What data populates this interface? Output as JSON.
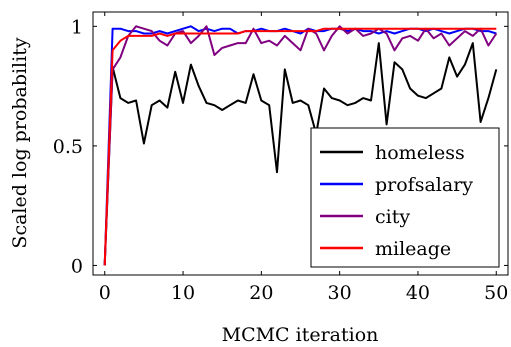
{
  "chart_data": {
    "type": "line",
    "xlabel": "MCMC iteration",
    "ylabel": "Scaled log probability",
    "xlim": [
      -1.5,
      51.5
    ],
    "ylim": [
      -0.04,
      1.06
    ],
    "xticks": [
      0,
      10,
      20,
      30,
      40,
      50
    ],
    "yticks": [
      0,
      0.5,
      1
    ],
    "ytick_labels": [
      "0",
      "0.5",
      "1"
    ],
    "grid": false,
    "legend_position": "bottom-right",
    "x": [
      0,
      1,
      2,
      3,
      4,
      5,
      6,
      7,
      8,
      9,
      10,
      11,
      12,
      13,
      14,
      15,
      16,
      17,
      18,
      19,
      20,
      21,
      22,
      23,
      24,
      25,
      26,
      27,
      28,
      29,
      30,
      31,
      32,
      33,
      34,
      35,
      36,
      37,
      38,
      39,
      40,
      41,
      42,
      43,
      44,
      45,
      46,
      47,
      48,
      49,
      50
    ],
    "series": [
      {
        "name": "homeless",
        "color": "#000000",
        "values": [
          0.0,
          0.83,
          0.7,
          0.68,
          0.69,
          0.51,
          0.67,
          0.69,
          0.66,
          0.81,
          0.68,
          0.84,
          0.75,
          0.68,
          0.67,
          0.65,
          0.67,
          0.69,
          0.68,
          0.8,
          0.69,
          0.67,
          0.39,
          0.82,
          0.68,
          0.69,
          0.67,
          0.55,
          0.74,
          0.7,
          0.69,
          0.67,
          0.68,
          0.7,
          0.69,
          0.93,
          0.59,
          0.85,
          0.82,
          0.74,
          0.71,
          0.7,
          0.72,
          0.74,
          0.87,
          0.79,
          0.84,
          0.93,
          0.6,
          0.7,
          0.82
        ]
      },
      {
        "name": "profsalary",
        "color": "#0000ff",
        "values": [
          0.0,
          0.99,
          0.99,
          0.98,
          0.98,
          0.97,
          0.97,
          0.98,
          0.97,
          0.98,
          0.99,
          1.0,
          0.98,
          0.99,
          0.98,
          0.99,
          0.99,
          0.97,
          0.98,
          0.98,
          0.99,
          0.98,
          0.98,
          0.99,
          0.98,
          0.97,
          0.99,
          0.98,
          0.98,
          0.99,
          0.99,
          0.98,
          0.99,
          0.98,
          0.98,
          0.97,
          0.98,
          0.97,
          0.98,
          0.99,
          0.99,
          0.98,
          0.99,
          0.98,
          0.97,
          0.98,
          0.99,
          0.99,
          0.98,
          0.98,
          0.97
        ]
      },
      {
        "name": "city",
        "color": "#800080",
        "values": [
          0.0,
          0.82,
          0.87,
          0.96,
          1.0,
          0.99,
          0.98,
          0.94,
          0.92,
          0.97,
          0.98,
          0.93,
          0.96,
          1.0,
          0.88,
          0.91,
          0.92,
          0.93,
          0.93,
          0.99,
          0.93,
          0.94,
          0.92,
          0.96,
          0.93,
          0.9,
          0.99,
          0.97,
          0.9,
          0.96,
          1.0,
          0.97,
          0.99,
          0.96,
          0.97,
          0.99,
          0.97,
          0.9,
          0.95,
          0.96,
          0.94,
          0.99,
          0.95,
          0.97,
          0.92,
          0.95,
          0.98,
          0.96,
          0.99,
          0.92,
          0.97
        ]
      },
      {
        "name": "mileage",
        "color": "#ff0000",
        "values": [
          0.0,
          0.9,
          0.94,
          0.96,
          0.96,
          0.96,
          0.96,
          0.97,
          0.96,
          0.97,
          0.97,
          0.97,
          0.97,
          0.97,
          0.97,
          0.97,
          0.97,
          0.97,
          0.98,
          0.98,
          0.98,
          0.98,
          0.98,
          0.98,
          0.98,
          0.98,
          0.98,
          0.98,
          0.99,
          0.99,
          0.99,
          0.99,
          0.99,
          0.99,
          0.99,
          0.99,
          0.99,
          0.99,
          0.99,
          0.99,
          0.99,
          0.99,
          0.99,
          0.99,
          0.99,
          0.99,
          0.99,
          0.99,
          0.99,
          0.99,
          0.99
        ]
      }
    ]
  }
}
